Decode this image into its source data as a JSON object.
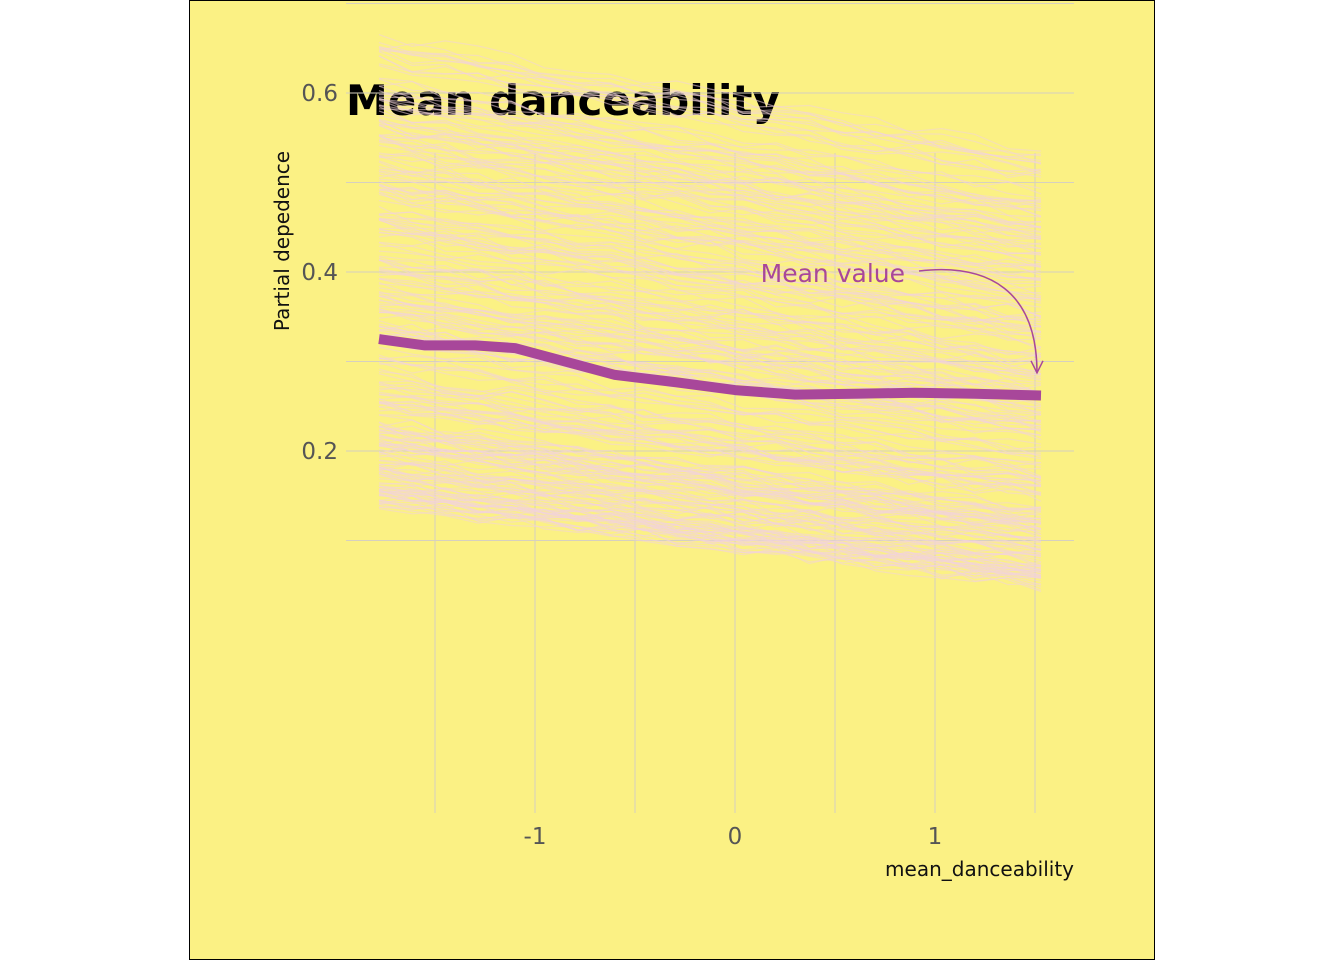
{
  "chart_data": {
    "type": "line",
    "title": "Mean danceability",
    "xlabel": "mean_danceability",
    "ylabel": "Partial depedence",
    "xlim": [
      -2.0,
      1.5
    ],
    "ylim": [
      0.05,
      0.72
    ],
    "x_ticks": [
      -1,
      0,
      1
    ],
    "x_tick_labels": [
      "-1",
      "0",
      "1"
    ],
    "x_minor_grid": [
      -1.5,
      -0.5,
      0.5,
      1.5
    ],
    "y_ticks": [
      0.2,
      0.4,
      0.6
    ],
    "y_tick_labels": [
      "0.2",
      "0.4",
      "0.6"
    ],
    "y_minor_grid": [
      0.1,
      0.3,
      0.5,
      0.7
    ],
    "grid": true,
    "series": [
      {
        "name": "Mean value",
        "x": [
          -1.78,
          -1.55,
          -1.3,
          -1.1,
          -0.9,
          -0.6,
          -0.3,
          0.0,
          0.3,
          0.6,
          0.9,
          1.2,
          1.53
        ],
        "values": [
          0.325,
          0.318,
          0.318,
          0.315,
          0.303,
          0.285,
          0.277,
          0.268,
          0.263,
          0.264,
          0.265,
          0.264,
          0.262
        ]
      }
    ],
    "ice_curves": {
      "description_visible": false,
      "x_range": [
        -1.78,
        1.53
      ],
      "y_band_start": [
        0.14,
        0.68
      ],
      "y_band_end": [
        0.05,
        0.55
      ]
    },
    "annotation": {
      "text": "Mean value",
      "target_x": 1.5,
      "target_y": 0.265,
      "text_x": 0.5,
      "text_y": 0.4
    },
    "colors": {
      "background": "#FBF184",
      "mean_line": "#A8479A",
      "ice_lines": "#F3D3DA",
      "grid": "#D6D0C0",
      "annotation": "#A8479A"
    }
  }
}
